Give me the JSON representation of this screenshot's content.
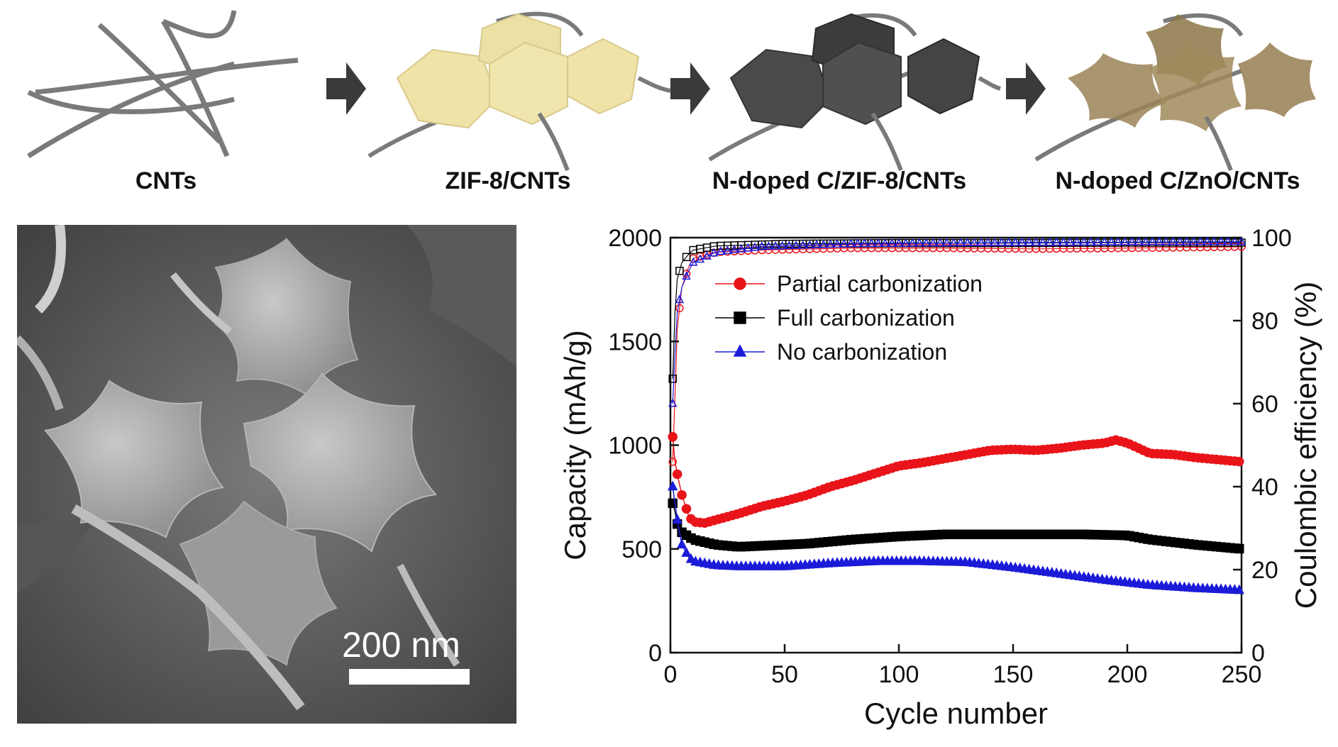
{
  "scheme": {
    "stages": [
      {
        "label": "CNTs"
      },
      {
        "label": "ZIF-8/CNTs"
      },
      {
        "label": "N-doped C/ZIF-8/CNTs"
      },
      {
        "label": "N-doped C/ZnO/CNTs"
      }
    ],
    "colors": {
      "zif8": "#efe3a8",
      "carbon": "#4a4a4a",
      "zno": "#9a8457",
      "arrow": "#3a3a3a",
      "cnt": "#7a7a7a"
    }
  },
  "sem": {
    "scale_bar_label": "200 nm"
  },
  "chart_data": {
    "type": "line",
    "x_label": "Cycle number",
    "y_label": "Capacity (mAh/g)",
    "y2_label": "Coulombic efficiency (%)",
    "x_range": [
      0,
      250
    ],
    "y_range": [
      0,
      2000
    ],
    "y2_range": [
      0,
      100
    ],
    "x_ticks": [
      0,
      50,
      100,
      150,
      200,
      250
    ],
    "y_ticks": [
      0,
      500,
      1000,
      1500,
      2000
    ],
    "y2_ticks": [
      0,
      20,
      40,
      60,
      80,
      100
    ],
    "legend_position": "top-left",
    "series": [
      {
        "name": "Partial carbonization",
        "color": "#e8141a",
        "marker": "circle",
        "capacity": [
          [
            1,
            1040
          ],
          [
            2,
            920
          ],
          [
            3,
            860
          ],
          [
            5,
            760
          ],
          [
            8,
            660
          ],
          [
            10,
            630
          ],
          [
            15,
            625
          ],
          [
            20,
            640
          ],
          [
            30,
            670
          ],
          [
            40,
            705
          ],
          [
            50,
            730
          ],
          [
            60,
            760
          ],
          [
            70,
            800
          ],
          [
            80,
            830
          ],
          [
            90,
            865
          ],
          [
            100,
            900
          ],
          [
            110,
            915
          ],
          [
            120,
            935
          ],
          [
            130,
            955
          ],
          [
            140,
            975
          ],
          [
            150,
            980
          ],
          [
            160,
            975
          ],
          [
            170,
            985
          ],
          [
            180,
            1000
          ],
          [
            190,
            1010
          ],
          [
            195,
            1025
          ],
          [
            200,
            1010
          ],
          [
            210,
            960
          ],
          [
            220,
            955
          ],
          [
            230,
            940
          ],
          [
            240,
            930
          ],
          [
            250,
            920
          ]
        ],
        "efficiency": [
          [
            1,
            46
          ],
          [
            2,
            62
          ],
          [
            3,
            78
          ],
          [
            5,
            88
          ],
          [
            8,
            93
          ],
          [
            10,
            95
          ],
          [
            20,
            96.5
          ],
          [
            40,
            97
          ],
          [
            80,
            97.5
          ],
          [
            120,
            97.5
          ],
          [
            160,
            97.3
          ],
          [
            200,
            97.5
          ],
          [
            250,
            97.8
          ]
        ]
      },
      {
        "name": "Full carbonization",
        "color": "#000000",
        "marker": "square",
        "capacity": [
          [
            1,
            720
          ],
          [
            2,
            680
          ],
          [
            3,
            620
          ],
          [
            5,
            580
          ],
          [
            10,
            545
          ],
          [
            20,
            520
          ],
          [
            30,
            510
          ],
          [
            40,
            515
          ],
          [
            50,
            520
          ],
          [
            60,
            525
          ],
          [
            80,
            545
          ],
          [
            100,
            560
          ],
          [
            120,
            570
          ],
          [
            150,
            570
          ],
          [
            180,
            570
          ],
          [
            200,
            565
          ],
          [
            210,
            545
          ],
          [
            230,
            520
          ],
          [
            250,
            500
          ]
        ],
        "efficiency": [
          [
            1,
            66
          ],
          [
            2,
            82
          ],
          [
            3,
            90
          ],
          [
            5,
            94
          ],
          [
            8,
            96
          ],
          [
            10,
            97
          ],
          [
            20,
            98
          ],
          [
            50,
            98.5
          ],
          [
            100,
            98.7
          ],
          [
            150,
            98.7
          ],
          [
            200,
            98.8
          ],
          [
            250,
            98.8
          ]
        ]
      },
      {
        "name": "No carbonization",
        "color": "#1b1bd8",
        "marker": "triangle",
        "capacity": [
          [
            1,
            800
          ],
          [
            2,
            720
          ],
          [
            3,
            640
          ],
          [
            5,
            520
          ],
          [
            8,
            460
          ],
          [
            10,
            440
          ],
          [
            20,
            420
          ],
          [
            30,
            415
          ],
          [
            50,
            415
          ],
          [
            70,
            430
          ],
          [
            90,
            440
          ],
          [
            110,
            440
          ],
          [
            130,
            435
          ],
          [
            150,
            410
          ],
          [
            170,
            380
          ],
          [
            190,
            350
          ],
          [
            210,
            325
          ],
          [
            230,
            310
          ],
          [
            250,
            300
          ]
        ],
        "efficiency": [
          [
            1,
            60
          ],
          [
            2,
            72
          ],
          [
            3,
            82
          ],
          [
            5,
            88
          ],
          [
            8,
            92
          ],
          [
            10,
            94
          ],
          [
            20,
            96.5
          ],
          [
            40,
            97.8
          ],
          [
            80,
            98.5
          ],
          [
            150,
            98.8
          ],
          [
            250,
            99
          ]
        ]
      }
    ]
  }
}
